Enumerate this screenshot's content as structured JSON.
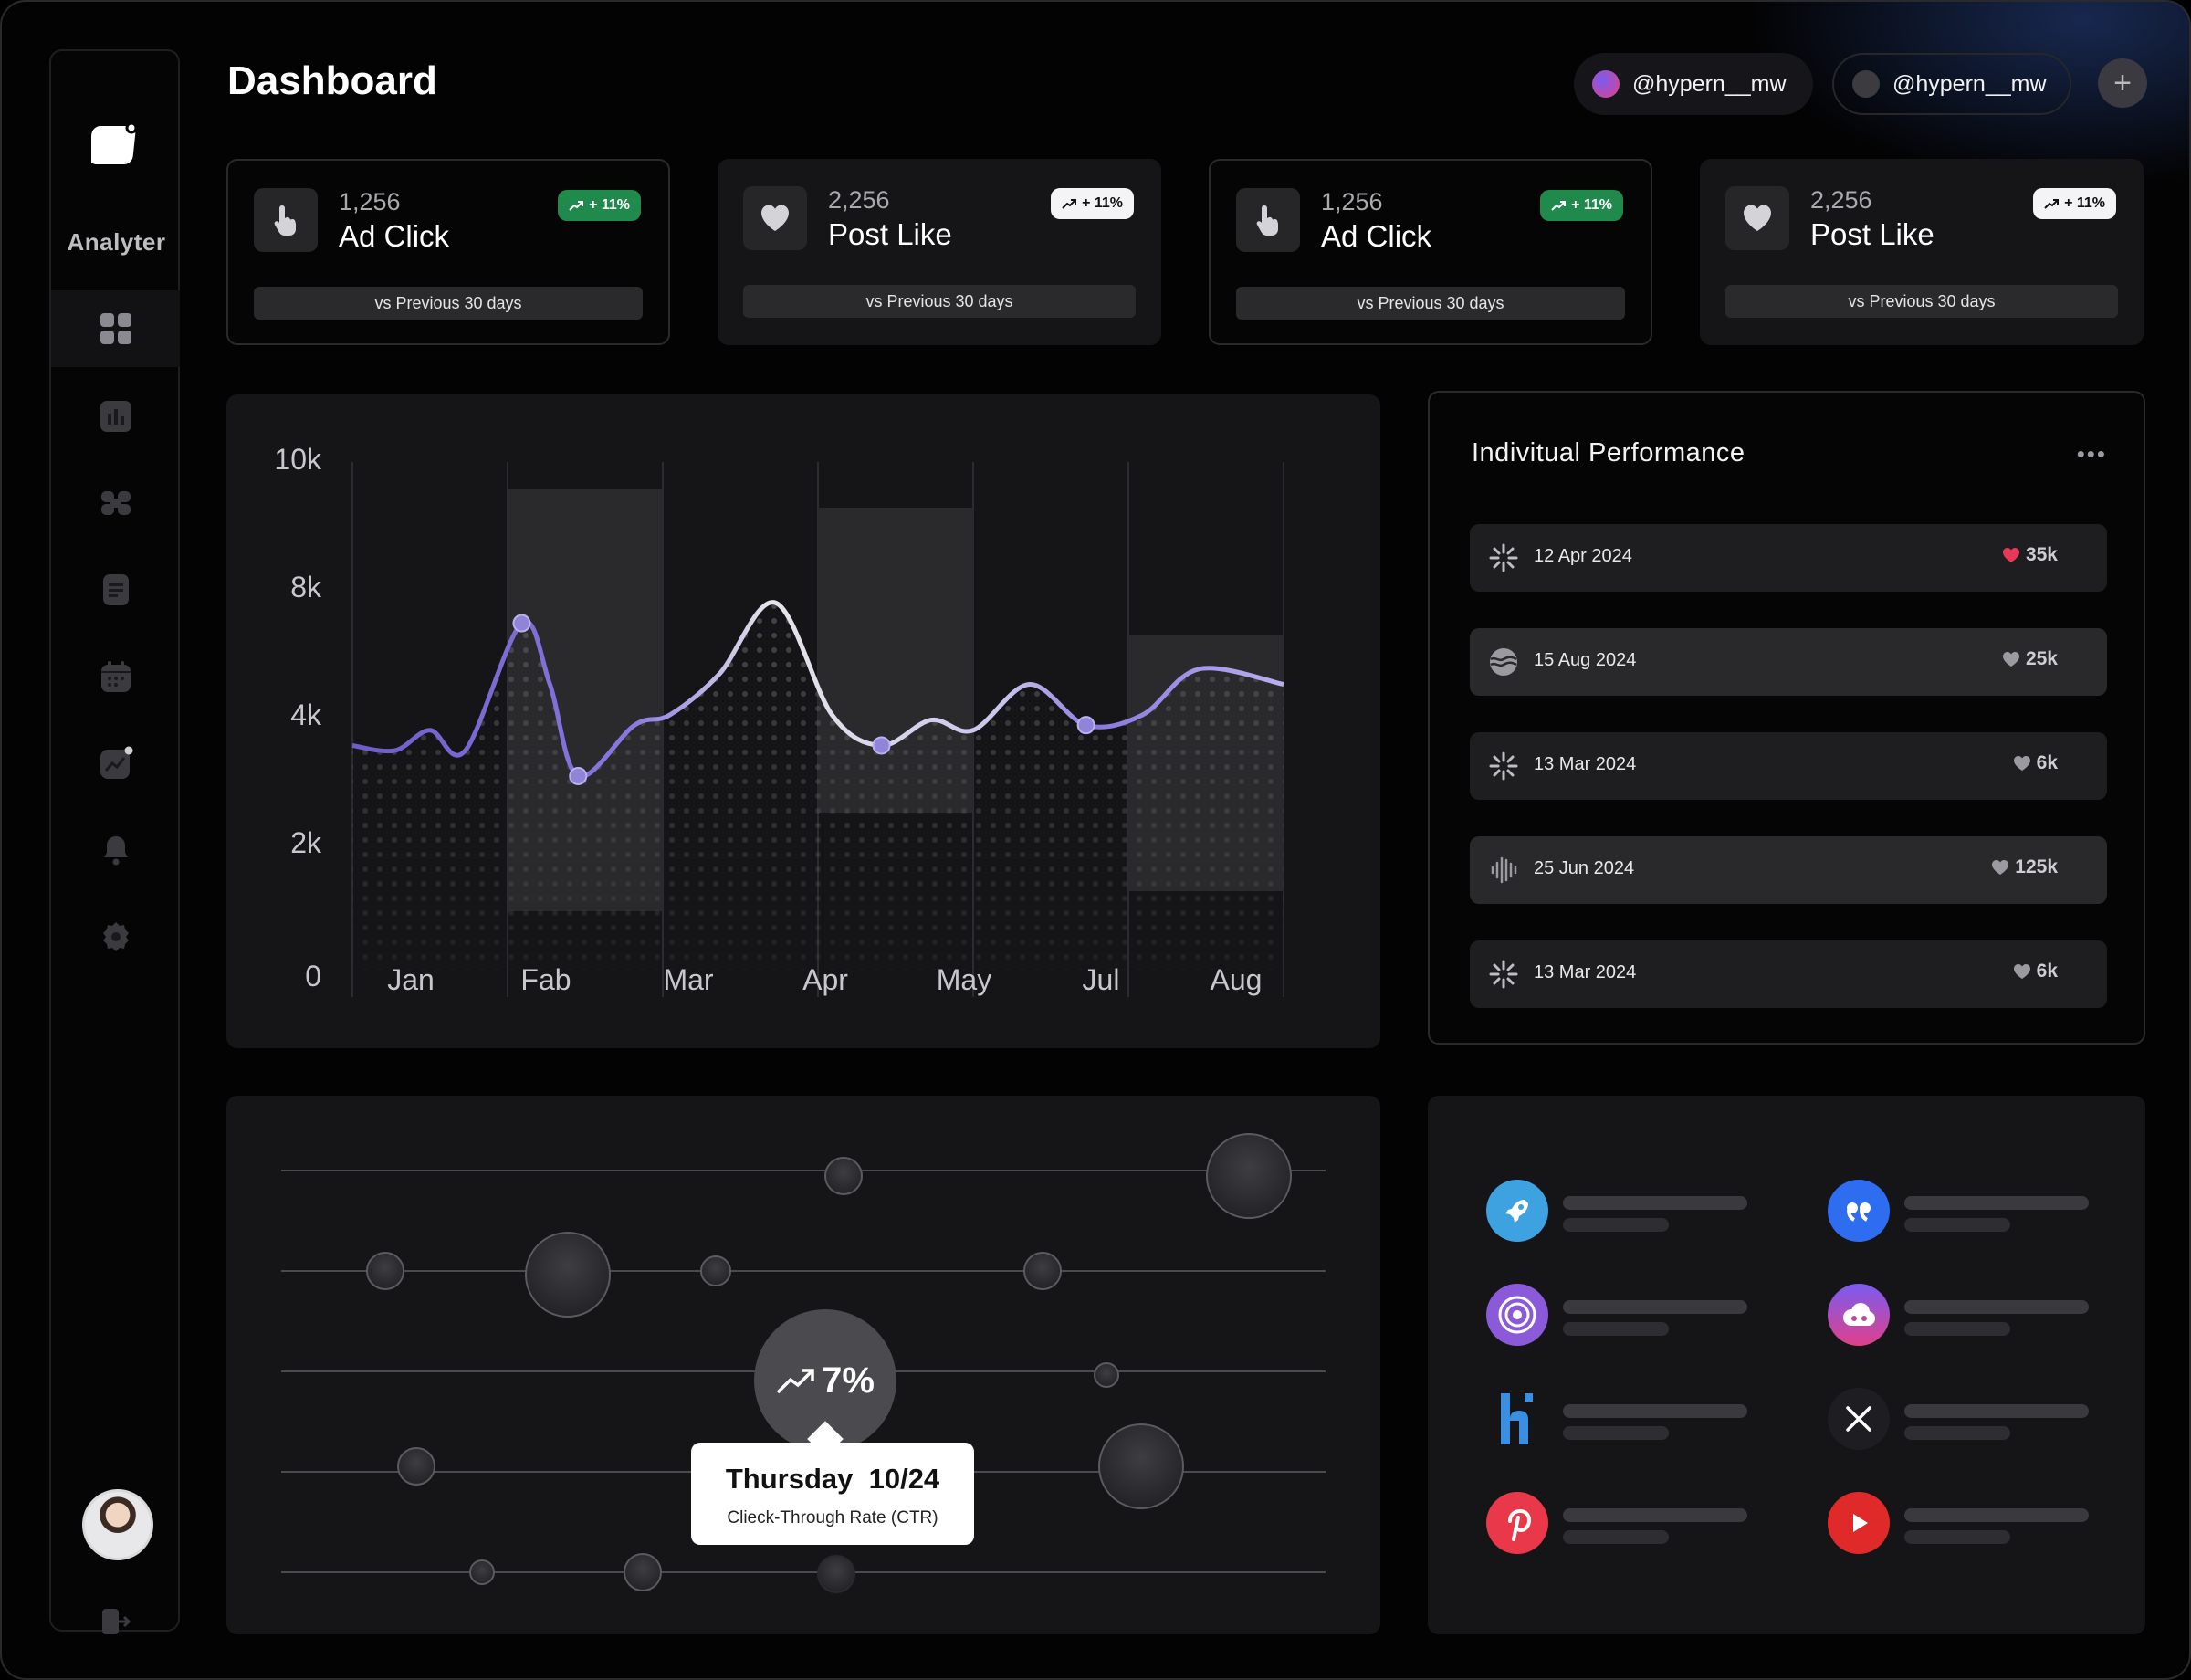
{
  "app": {
    "name": "Analyter",
    "page_title": "Dashboard"
  },
  "accounts": [
    {
      "handle": "@hypern__mw",
      "color": "#e0408a"
    },
    {
      "handle": "@hypern__mw",
      "color": "#3b3b40"
    }
  ],
  "add_label": "+",
  "sidebar": {
    "items": [
      {
        "name": "dashboard",
        "icon": "grid-icon"
      },
      {
        "name": "analytics",
        "icon": "bar-chart-icon"
      },
      {
        "name": "apps",
        "icon": "cmd-icon"
      },
      {
        "name": "documents",
        "icon": "document-icon"
      },
      {
        "name": "calendar",
        "icon": "calendar-icon"
      },
      {
        "name": "trends",
        "icon": "trend-icon"
      },
      {
        "name": "notifications",
        "icon": "bell-icon"
      },
      {
        "name": "settings",
        "icon": "gear-icon"
      }
    ]
  },
  "stats": [
    {
      "value": "1,256",
      "label": "Ad Click",
      "change": "+ 11%",
      "footer": "vs Previous 30 days",
      "icon": "pointer-icon",
      "badge": "green"
    },
    {
      "value": "2,256",
      "label": "Post Like",
      "change": "+ 11%",
      "footer": "vs Previous 30 days",
      "icon": "heart-icon",
      "badge": "white"
    },
    {
      "value": "1,256",
      "label": "Ad Click",
      "change": "+ 11%",
      "footer": "vs Previous 30 days",
      "icon": "pointer-icon",
      "badge": "green"
    },
    {
      "value": "2,256",
      "label": "Post Like",
      "change": "+ 11%",
      "footer": "vs Previous 30 days",
      "icon": "heart-icon",
      "badge": "white"
    }
  ],
  "chart_data": {
    "type": "line",
    "categories": [
      "Jan",
      "Fab",
      "Mar",
      "Apr",
      "May",
      "Jul",
      "Aug"
    ],
    "y_ticks": [
      "10k",
      "8k",
      "4k",
      "2k",
      "0"
    ],
    "x": [
      0,
      0.3,
      0.55,
      0.8,
      1.2,
      1.4,
      1.6,
      2.0,
      2.25,
      2.6,
      3.0,
      3.4,
      3.75,
      4.1,
      4.4,
      4.8,
      5.2,
      5.6,
      6.0,
      6.6
    ],
    "values": [
      4.4,
      4.3,
      4.7,
      4.3,
      6.8,
      5.6,
      3.8,
      4.8,
      5.0,
      5.8,
      7.2,
      5.0,
      4.4,
      4.9,
      4.7,
      5.6,
      4.8,
      5.0,
      5.9,
      5.6
    ],
    "markers": [
      {
        "x": 1.2,
        "y": 6.8
      },
      {
        "x": 1.6,
        "y": 3.8
      },
      {
        "x": 3.75,
        "y": 4.4
      },
      {
        "x": 5.2,
        "y": 4.8
      }
    ],
    "ylim": [
      0,
      10
    ]
  },
  "performance": {
    "title": "Indivitual Performance",
    "more": "•••",
    "rows": [
      {
        "date": "12 Apr 2024",
        "value": "35k",
        "icon": "burst-icon",
        "heart_color": "#e8385a"
      },
      {
        "date": "15 Aug 2024",
        "value": "25k",
        "icon": "wave-globe-icon",
        "heart_color": "#9a9aa0"
      },
      {
        "date": "13 Mar 2024",
        "value": "6k",
        "icon": "burst-icon",
        "heart_color": "#9a9aa0"
      },
      {
        "date": "25 Jun 2024",
        "value": "125k",
        "icon": "sound-wave-icon",
        "heart_color": "#9a9aa0"
      },
      {
        "date": "13 Mar 2024",
        "value": "6k",
        "icon": "burst-icon",
        "heart_color": "#9a9aa0"
      }
    ]
  },
  "engagement": {
    "change": "7%",
    "tooltip_day": "Thursday",
    "tooltip_date": "10/24",
    "tooltip_metric": "Clieck-Through Rate (CTR)"
  },
  "apps": [
    {
      "name": "rocket-app",
      "bg": "#3ea2e0"
    },
    {
      "name": "quote-app",
      "bg": "#2f6df0"
    },
    {
      "name": "target-app",
      "bg": "#8a5ad8"
    },
    {
      "name": "cloud-app",
      "bg": "#e0408a"
    },
    {
      "name": "hi-app",
      "bg": "#151517"
    },
    {
      "name": "x-app",
      "bg": "#1e1e22"
    },
    {
      "name": "pinterest-app",
      "bg": "#e8384a"
    },
    {
      "name": "youtube-app",
      "bg": "#e02a2a"
    }
  ]
}
